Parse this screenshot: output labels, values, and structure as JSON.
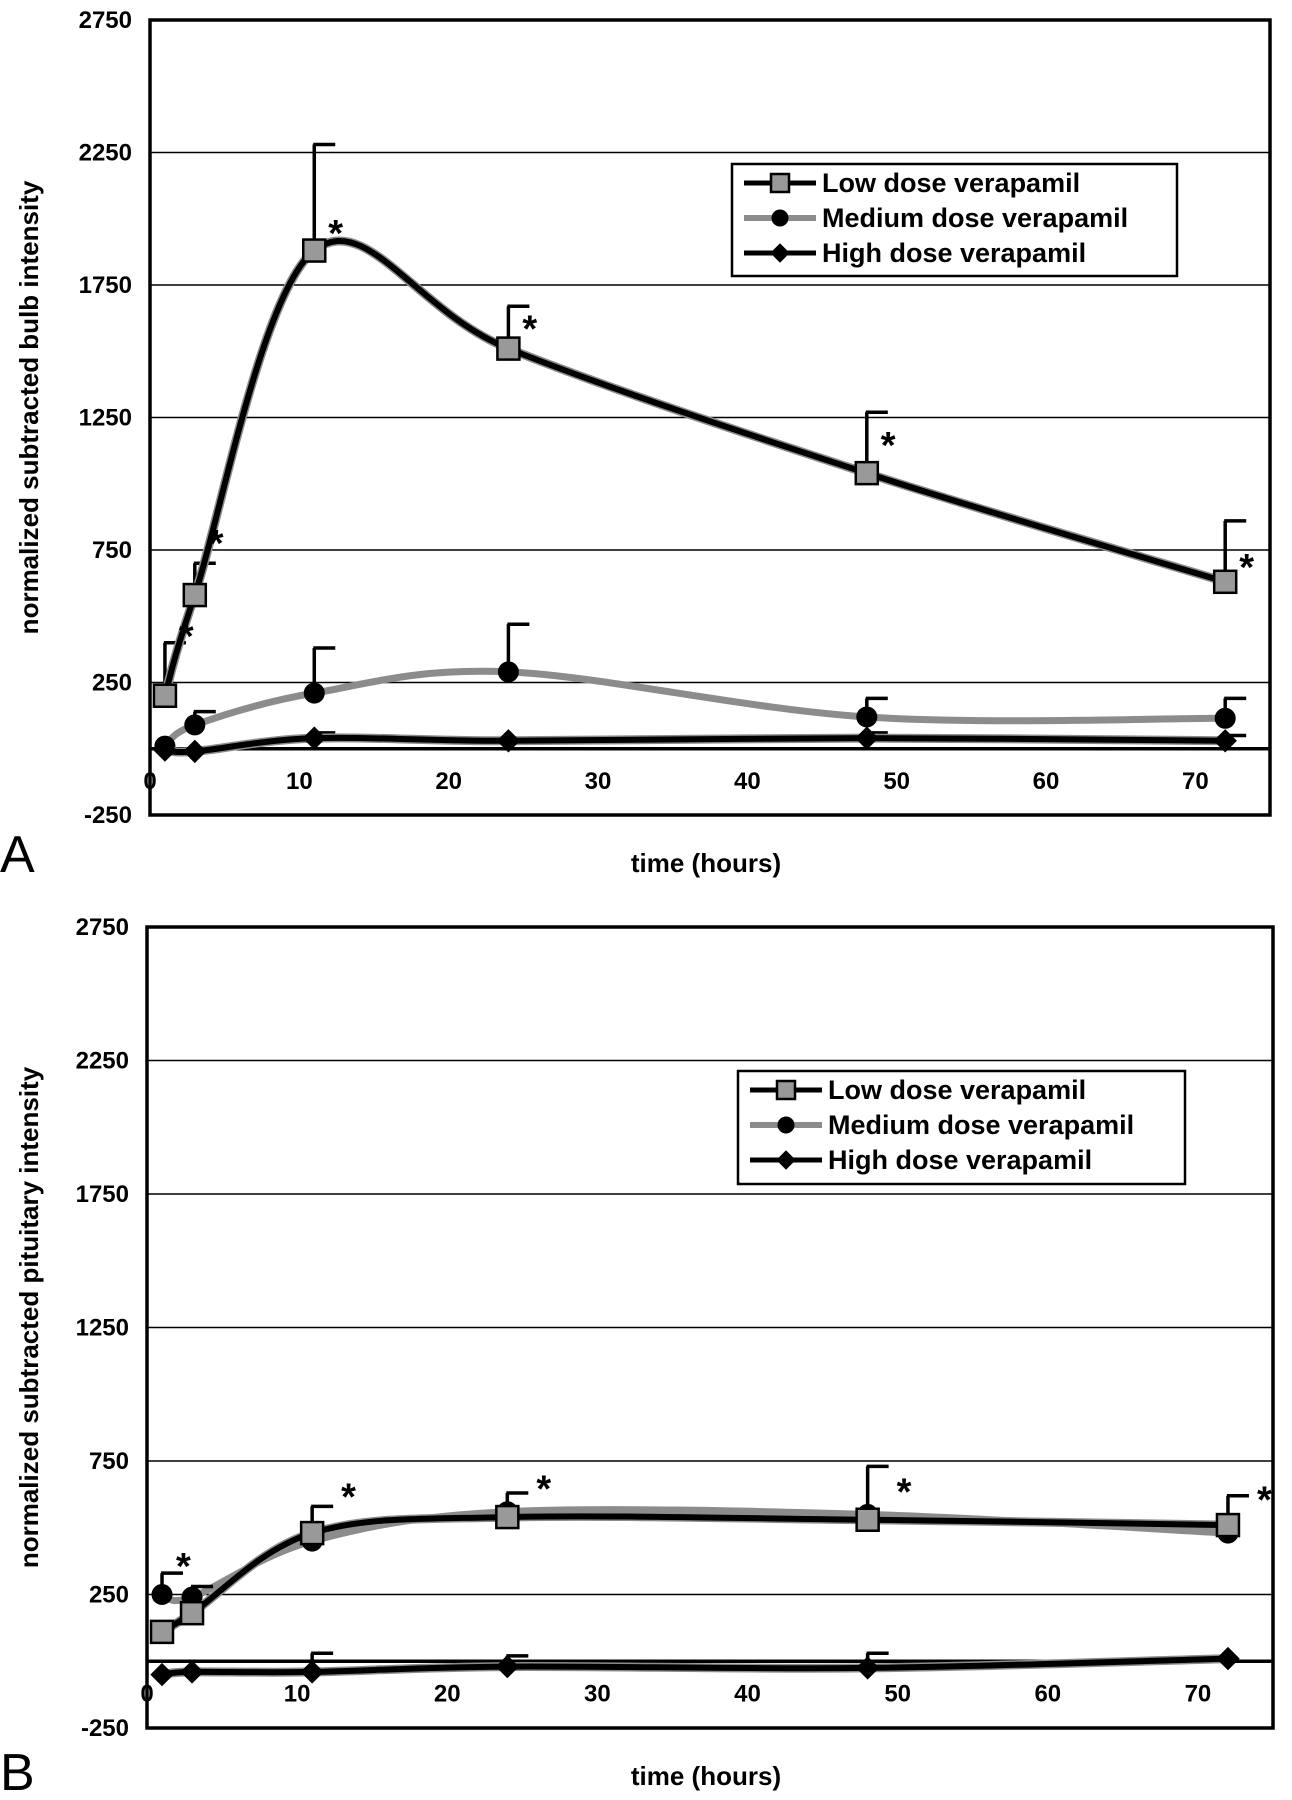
{
  "chart_data": [
    {
      "type": "line",
      "panel_label": "A",
      "xlabel": "time (hours)",
      "ylabel": "normalized subtracted bulb intensity",
      "xlim": [
        0,
        75
      ],
      "ylim": [
        -250,
        2750
      ],
      "x_ticks": [
        "0",
        "10",
        "20",
        "30",
        "40",
        "50",
        "60",
        "70"
      ],
      "y_ticks": [
        "2750",
        "2250",
        "1750",
        "1250",
        "750",
        "250",
        "-250"
      ],
      "x_tick_values": [
        0,
        10,
        20,
        30,
        40,
        50,
        60,
        70
      ],
      "y_tick_values": [
        2750,
        2250,
        1750,
        1250,
        750,
        250,
        -250
      ],
      "grid": true,
      "legend_position": "top-right",
      "x": [
        1,
        3,
        11,
        24,
        48,
        72
      ],
      "series": [
        {
          "name": "Low dose verapamil",
          "marker": "square",
          "line_color": "#000000",
          "marker_fill": "#999999",
          "values": [
            200,
            580,
            1880,
            1510,
            1040,
            630
          ],
          "error_upper": [
            400,
            700,
            2280,
            1670,
            1270,
            860
          ]
        },
        {
          "name": "Medium dose verapamil",
          "marker": "circle",
          "line_color": "#8c8c8c",
          "marker_fill": "#000000",
          "values": [
            10,
            90,
            210,
            290,
            120,
            115
          ],
          "error_upper": [
            null,
            140,
            380,
            470,
            190,
            190
          ]
        },
        {
          "name": "High dose verapamil",
          "marker": "diamond",
          "line_color": "#000000",
          "marker_fill": "#000000",
          "values": [
            -5,
            -10,
            40,
            30,
            40,
            30
          ],
          "error_upper": [
            null,
            null,
            60,
            null,
            60,
            50
          ]
        }
      ],
      "annotations": [
        {
          "text": "*",
          "x": 1,
          "y": 430
        },
        {
          "text": "*",
          "x": 3,
          "y": 780
        },
        {
          "text": "*",
          "x": 11,
          "y": 1950
        },
        {
          "text": "*",
          "x": 24,
          "y": 1590
        },
        {
          "text": "*",
          "x": 48,
          "y": 1150
        },
        {
          "text": "*",
          "x": 72,
          "y": 690
        }
      ]
    },
    {
      "type": "line",
      "panel_label": "B",
      "xlabel": "time (hours)",
      "ylabel": "normalized subtracted pituitary intensity",
      "xlim": [
        0,
        75
      ],
      "ylim": [
        -250,
        2750
      ],
      "x_ticks": [
        "0",
        "10",
        "20",
        "30",
        "40",
        "50",
        "60",
        "70"
      ],
      "y_ticks": [
        "2750",
        "2250",
        "1750",
        "1250",
        "750",
        "250",
        "-250"
      ],
      "x_tick_values": [
        0,
        10,
        20,
        30,
        40,
        50,
        60,
        70
      ],
      "y_tick_values": [
        2750,
        2250,
        1750,
        1250,
        750,
        250,
        -250
      ],
      "grid": true,
      "legend_position": "top-right",
      "x": [
        1,
        3,
        11,
        24,
        48,
        72
      ],
      "series": [
        {
          "name": "Low dose verapamil",
          "marker": "square",
          "line_color": "#000000",
          "marker_fill": "#999999",
          "values": [
            110,
            180,
            480,
            540,
            530,
            510
          ],
          "error_upper": [
            null,
            280,
            580,
            630,
            730,
            620
          ]
        },
        {
          "name": "Medium dose verapamil",
          "marker": "circle",
          "line_color": "#8c8c8c",
          "marker_fill": "#000000",
          "values": [
            250,
            240,
            450,
            560,
            550,
            480
          ],
          "error_upper": [
            330,
            null,
            null,
            null,
            null,
            null
          ]
        },
        {
          "name": "High dose verapamil",
          "marker": "diamond",
          "line_color": "#000000",
          "marker_fill": "#000000",
          "values": [
            -50,
            -40,
            -40,
            -20,
            -25,
            10
          ],
          "error_upper": [
            null,
            null,
            30,
            20,
            30,
            null
          ]
        }
      ],
      "annotations": [
        {
          "text": "*",
          "x": 1,
          "y": 360
        },
        {
          "text": "*",
          "x": 12,
          "y": 620
        },
        {
          "text": "*",
          "x": 25,
          "y": 650
        },
        {
          "text": "*",
          "x": 49,
          "y": 640
        },
        {
          "text": "*",
          "x": 73,
          "y": 610
        }
      ]
    }
  ]
}
